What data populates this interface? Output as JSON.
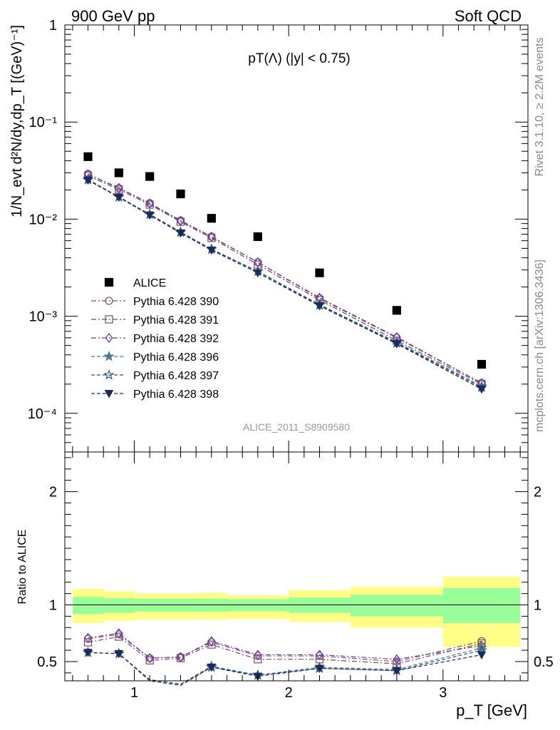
{
  "header": {
    "left": "900 GeV pp",
    "right": "Soft QCD"
  },
  "side": {
    "rivet": "Rivet 3.1.10, ≥ 2.2M events",
    "mcplots": "mcplots.cern.ch [arXiv:1306.3436]"
  },
  "chart_data": [
    {
      "type": "scatter",
      "title": "pT(Λ) (|y| < 0.75)",
      "ylabel": "1/N_evt d²N/dy,dp_T [(GeV)⁻¹]",
      "xlim": [
        0.55,
        3.55
      ],
      "ylim": [
        4e-05,
        1
      ],
      "yscale": "log",
      "y_tick_labels": [
        "1",
        "10⁻¹",
        "10⁻²",
        "10⁻³",
        "10⁻⁴"
      ],
      "analysis_label": "ALICE_2011_S8909580",
      "x": [
        0.7,
        0.9,
        1.1,
        1.3,
        1.5,
        1.8,
        2.2,
        2.7,
        3.25
      ],
      "series": [
        {
          "name": "ALICE",
          "color": "#000000",
          "marker": "filled-square",
          "values": [
            0.044,
            0.03,
            0.0275,
            0.0182,
            0.0102,
            0.0066,
            0.0028,
            0.00115,
            0.00032
          ]
        },
        {
          "name": "Pythia 6.428 390",
          "color": "#7b4d7f",
          "marker": "open-circle",
          "dash": "dashdot",
          "values": [
            0.0292,
            0.0208,
            0.0146,
            0.0097,
            0.0066,
            0.0036,
            0.00153,
            0.0006,
            0.000205
          ]
        },
        {
          "name": "Pythia 6.428 391",
          "color": "#7b4b5e",
          "marker": "open-square",
          "dash": "dashdot",
          "values": [
            0.028,
            0.0202,
            0.0141,
            0.0094,
            0.0064,
            0.0034,
            0.00147,
            0.00056,
            0.0002
          ]
        },
        {
          "name": "Pythia 6.428 392",
          "color": "#6a3d9a",
          "marker": "open-diamond",
          "dash": "dashdot",
          "values": [
            0.029,
            0.021,
            0.0145,
            0.0096,
            0.0066,
            0.0036,
            0.00155,
            0.00061,
            0.000205
          ]
        },
        {
          "name": "Pythia 6.428 396",
          "color": "#4a7c8a",
          "marker": "filled-star",
          "dash": "dashed",
          "values": [
            0.0257,
            0.017,
            0.0112,
            0.0074,
            0.0049,
            0.0029,
            0.00132,
            0.00054,
            0.00019
          ]
        },
        {
          "name": "Pythia 6.428 397",
          "color": "#2f4f7a",
          "marker": "open-star",
          "dash": "dashed",
          "values": [
            0.0254,
            0.0169,
            0.0112,
            0.0073,
            0.0049,
            0.0029,
            0.0013,
            0.00053,
            0.000185
          ]
        },
        {
          "name": "Pythia 6.428 398",
          "color": "#1c2a5c",
          "marker": "filled-triangle-down",
          "dash": "dashed",
          "values": [
            0.0252,
            0.0168,
            0.011,
            0.0072,
            0.0048,
            0.0028,
            0.00128,
            0.00052,
            0.000178
          ]
        }
      ]
    },
    {
      "type": "scatter",
      "ylabel": "Ratio to ALICE",
      "xlabel": "p_T [GeV]",
      "xlim": [
        0.55,
        3.55
      ],
      "ylim": [
        0.33,
        2.35
      ],
      "x_tick_labels": [
        "1",
        "2",
        "3"
      ],
      "y_tick_labels": [
        "0.5",
        "1",
        "2"
      ],
      "bands": [
        {
          "xlo": 0.6,
          "xhi": 0.8,
          "stat_lo": 0.92,
          "stat_hi": 1.07,
          "tot_lo": 0.84,
          "tot_hi": 1.14
        },
        {
          "xlo": 0.8,
          "xhi": 1.0,
          "stat_lo": 0.93,
          "stat_hi": 1.06,
          "tot_lo": 0.86,
          "tot_hi": 1.12
        },
        {
          "xlo": 1.0,
          "xhi": 1.4,
          "stat_lo": 0.94,
          "stat_hi": 1.055,
          "tot_lo": 0.87,
          "tot_hi": 1.1
        },
        {
          "xlo": 1.4,
          "xhi": 1.6,
          "stat_lo": 0.94,
          "stat_hi": 1.055,
          "tot_lo": 0.87,
          "tot_hi": 1.105
        },
        {
          "xlo": 1.6,
          "xhi": 2.0,
          "stat_lo": 0.945,
          "stat_hi": 1.05,
          "tot_lo": 0.875,
          "tot_hi": 1.085
        },
        {
          "xlo": 2.0,
          "xhi": 2.4,
          "stat_lo": 0.93,
          "stat_hi": 1.065,
          "tot_lo": 0.85,
          "tot_hi": 1.13
        },
        {
          "xlo": 2.4,
          "xhi": 3.0,
          "stat_lo": 0.9,
          "stat_hi": 1.09,
          "tot_lo": 0.8,
          "tot_hi": 1.16
        },
        {
          "xlo": 3.0,
          "xhi": 3.5,
          "stat_lo": 0.84,
          "stat_hi": 1.15,
          "tot_lo": 0.63,
          "tot_hi": 1.25
        }
      ],
      "x": [
        0.7,
        0.9,
        1.1,
        1.3,
        1.5,
        1.8,
        2.2,
        2.7,
        3.25
      ],
      "series": [
        {
          "name": "Pythia 6.428 390",
          "values": [
            0.7,
            0.74,
            0.53,
            0.54,
            0.67,
            0.55,
            0.55,
            0.5,
            0.68
          ]
        },
        {
          "name": "Pythia 6.428 391",
          "values": [
            0.67,
            0.72,
            0.51,
            0.53,
            0.65,
            0.52,
            0.52,
            0.48,
            0.66
          ]
        },
        {
          "name": "Pythia 6.428 392",
          "values": [
            0.71,
            0.75,
            0.53,
            0.54,
            0.68,
            0.56,
            0.56,
            0.52,
            0.64
          ]
        },
        {
          "name": "Pythia 6.428 396",
          "values": [
            0.58,
            0.57,
            0.34,
            0.3,
            0.46,
            0.38,
            0.45,
            0.43,
            0.62
          ]
        },
        {
          "name": "Pythia 6.428 397",
          "values": [
            0.58,
            0.57,
            0.34,
            0.3,
            0.45,
            0.38,
            0.44,
            0.42,
            0.6
          ]
        },
        {
          "name": "Pythia 6.428 398",
          "values": [
            0.58,
            0.57,
            0.33,
            0.29,
            0.45,
            0.37,
            0.44,
            0.42,
            0.56
          ]
        }
      ]
    }
  ]
}
